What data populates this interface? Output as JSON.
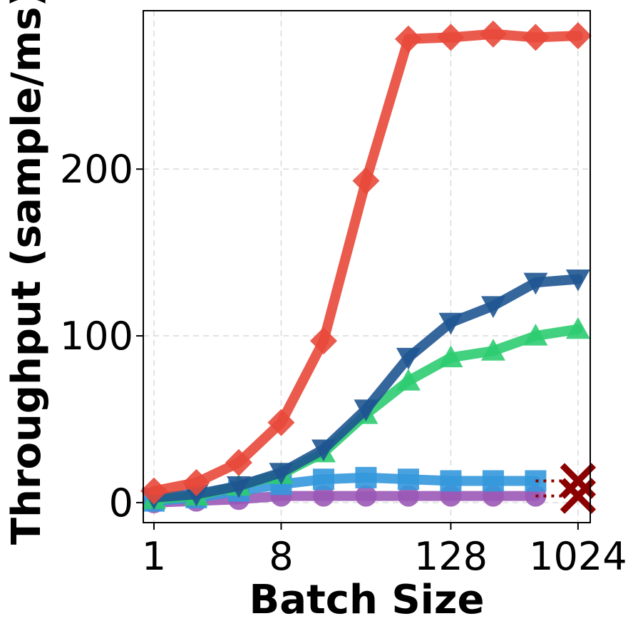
{
  "chart_data": {
    "type": "line",
    "title": "",
    "xlabel": "Batch Size",
    "ylabel": "Throughput (sample/ms)",
    "x_scale": "log2",
    "x": [
      1,
      2,
      4,
      8,
      16,
      32,
      64,
      128,
      256,
      512,
      1024
    ],
    "xticks": [
      1,
      8,
      128,
      1024
    ],
    "yticks": [
      0,
      100,
      200
    ],
    "xlim": [
      0.84,
      1250
    ],
    "ylim": [
      -12,
      295
    ],
    "grid": true,
    "legend": "none",
    "series": [
      {
        "marker": "diamond",
        "color": "#e8483a",
        "values": [
          7,
          12,
          24,
          48,
          97,
          193,
          278,
          279,
          281,
          279,
          280
        ]
      },
      {
        "marker": "triangle-down",
        "color": "#1f5591",
        "values": [
          3,
          5,
          10,
          18,
          32,
          56,
          87,
          108,
          118,
          132,
          134
        ]
      },
      {
        "marker": "triangle-up",
        "color": "#2ecc71",
        "values": [
          2,
          4,
          10,
          17,
          30,
          53,
          73,
          87,
          91,
          100,
          104
        ]
      },
      {
        "marker": "square",
        "color": "#3498db",
        "values": [
          1,
          3,
          7,
          11,
          14,
          15,
          14,
          13,
          13,
          13,
          null
        ]
      },
      {
        "marker": "circle",
        "color": "#9b59b6",
        "values": [
          0,
          1,
          2,
          4,
          4,
          4,
          4,
          4,
          4,
          4,
          null
        ]
      }
    ],
    "failure_markers": [
      {
        "x": 1024,
        "y": 13,
        "color": "#8b0000",
        "connect_from": 512
      },
      {
        "x": 1024,
        "y": 4,
        "color": "#8b0000",
        "connect_from": 512
      }
    ]
  }
}
